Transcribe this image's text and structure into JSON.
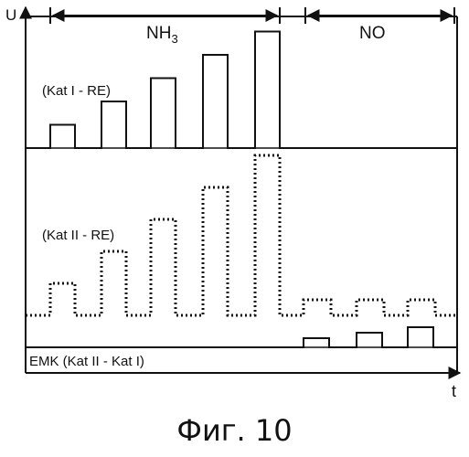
{
  "axes": {
    "y_label": "U",
    "x_label": "t"
  },
  "gas_ranges": {
    "nh3": "NH3",
    "no": "NO"
  },
  "signals": {
    "kat1": {
      "label": "(Kat I - RE)",
      "style": "solid",
      "pulse_levels": [
        1,
        2,
        3,
        4,
        5
      ]
    },
    "kat2": {
      "label": "(Kat II - RE)",
      "style": "dotted",
      "pulse_levels_nh3": [
        1,
        2,
        3,
        4,
        5
      ],
      "pulse_levels_no": [
        1,
        1,
        1
      ]
    },
    "emk": {
      "label": "EMK (Kat II - Kat I)",
      "style": "solid",
      "pulse_levels_no": [
        1,
        2,
        3
      ]
    }
  },
  "caption": "Фиг. 10",
  "colors": {
    "ink": "#111111",
    "background": "#ffffff"
  }
}
